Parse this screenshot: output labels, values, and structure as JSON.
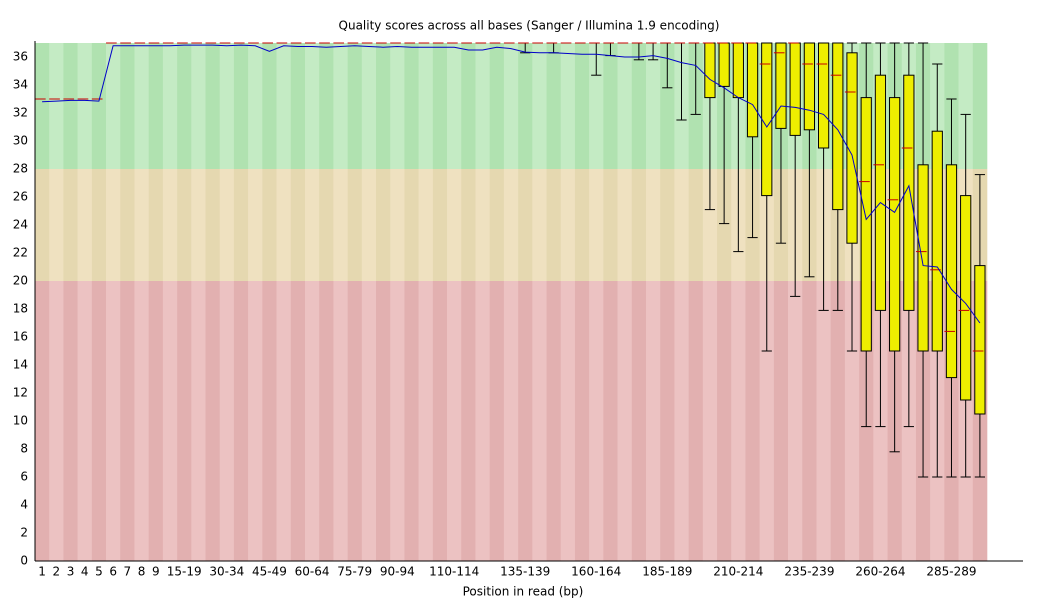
{
  "chart_data": {
    "type": "box",
    "title": "Quality scores across all bases (Sanger / Illumina 1.9 encoding)",
    "x_label": "Position in read (bp)",
    "categories": [
      "1",
      "2",
      "3",
      "4",
      "5",
      "6",
      "7",
      "8",
      "9",
      null,
      "15-19",
      null,
      null,
      "30-34",
      null,
      null,
      "45-49",
      null,
      null,
      "60-64",
      null,
      null,
      "75-79",
      null,
      null,
      "90-94",
      null,
      null,
      null,
      "110-114",
      null,
      null,
      null,
      null,
      "135-139",
      null,
      null,
      null,
      null,
      "160-164",
      null,
      null,
      null,
      null,
      "185-189",
      null,
      null,
      null,
      null,
      "210-214",
      null,
      null,
      null,
      null,
      "235-239",
      null,
      null,
      null,
      null,
      "260-264",
      null,
      null,
      null,
      null,
      "285-289",
      null,
      null
    ],
    "lower": [
      33,
      33,
      33,
      33,
      33,
      37,
      37,
      37,
      37,
      37,
      37,
      37,
      37,
      37,
      37,
      37,
      37,
      37,
      37,
      37,
      37,
      37,
      37,
      37,
      37,
      37,
      37,
      37,
      37,
      37,
      37,
      37,
      37,
      37,
      36.3,
      37,
      36.3,
      37,
      37,
      34.7,
      36.1,
      37,
      35.8,
      35.8,
      33.8,
      31.5,
      31.9,
      25.1,
      24.1,
      22.1,
      23.1,
      15,
      22.7,
      18.9,
      20.3,
      17.9,
      17.9,
      15,
      9.6,
      9.6,
      7.8,
      9.6,
      6,
      6,
      6,
      6,
      6
    ],
    "q1": [
      33,
      33,
      33,
      33,
      33,
      37,
      37,
      37,
      37,
      37,
      37,
      37,
      37,
      37,
      37,
      37,
      37,
      37,
      37,
      37,
      37,
      37,
      37,
      37,
      37,
      37,
      37,
      37,
      37,
      37,
      37,
      37,
      37,
      37,
      37,
      37,
      37,
      37,
      37,
      37,
      37,
      37,
      37,
      37,
      37,
      37,
      37,
      33.1,
      33.9,
      33.1,
      30.3,
      26.1,
      30.9,
      30.4,
      30.8,
      29.5,
      25.1,
      22.7,
      15,
      17.9,
      15,
      17.9,
      15,
      15,
      13.1,
      11.5,
      10.5
    ],
    "median": [
      33,
      33,
      33,
      33,
      33,
      37,
      37,
      37,
      37,
      37,
      37,
      37,
      37,
      37,
      37,
      37,
      37,
      37,
      37,
      37,
      37,
      37,
      37,
      37,
      37,
      37,
      37,
      37,
      37,
      37,
      37,
      37,
      37,
      37,
      37,
      37,
      37,
      37,
      37,
      37,
      37,
      37,
      37,
      37,
      37,
      37,
      37,
      37,
      37,
      37,
      37,
      35.5,
      36.3,
      37,
      35.5,
      35.5,
      34.7,
      33.5,
      27.1,
      28.3,
      25.8,
      29.5,
      22.1,
      20.8,
      16.4,
      17.9,
      15
    ],
    "q3": [
      33,
      33,
      33,
      33,
      33,
      37,
      37,
      37,
      37,
      37,
      37,
      37,
      37,
      37,
      37,
      37,
      37,
      37,
      37,
      37,
      37,
      37,
      37,
      37,
      37,
      37,
      37,
      37,
      37,
      37,
      37,
      37,
      37,
      37,
      37,
      37,
      37,
      37,
      37,
      37,
      37,
      37,
      37,
      37,
      37,
      37,
      37,
      37,
      37,
      37,
      37,
      37,
      37,
      37,
      37,
      37,
      37,
      36.3,
      33.1,
      34.7,
      33.1,
      34.7,
      28.3,
      30.7,
      28.3,
      26.1,
      21.1
    ],
    "upper": [
      33,
      33,
      33,
      33,
      33,
      37,
      37,
      37,
      37,
      37,
      37,
      37,
      37,
      37,
      37,
      37,
      37,
      37,
      37,
      37,
      37,
      37,
      37,
      37,
      37,
      37,
      37,
      37,
      37,
      37,
      37,
      37,
      37,
      37,
      37,
      37,
      37,
      37,
      37,
      37,
      37,
      37,
      37,
      37,
      37,
      37,
      37,
      37,
      37,
      37,
      37,
      37,
      37,
      37,
      37,
      37,
      37,
      37,
      37,
      37,
      37,
      37,
      37,
      35.5,
      33,
      31.9,
      27.6
    ],
    "mean": [
      32.8,
      32.85,
      32.9,
      32.9,
      32.85,
      36.8,
      36.8,
      36.8,
      36.8,
      36.8,
      36.85,
      36.85,
      36.85,
      36.8,
      36.85,
      36.8,
      36.4,
      36.8,
      36.75,
      36.75,
      36.7,
      36.75,
      36.8,
      36.75,
      36.7,
      36.75,
      36.7,
      36.7,
      36.7,
      36.7,
      36.5,
      36.5,
      36.7,
      36.6,
      36.35,
      36.3,
      36.3,
      36.25,
      36.2,
      36.2,
      36.1,
      36.0,
      36.0,
      36.1,
      35.9,
      35.6,
      35.4,
      34.4,
      33.8,
      33.1,
      32.6,
      31.0,
      32.5,
      32.4,
      32.2,
      31.9,
      30.8,
      29.0,
      24.4,
      25.6,
      24.9,
      26.8,
      21.1,
      21.0,
      19.4,
      18.4,
      17.0
    ],
    "box_color": "#eeee00",
    "median_color": "#c80000",
    "mean_color": "#0000c8",
    "zones": [
      {
        "from": 28,
        "to": 37,
        "colors": [
          "#b0e2b0",
          "#c4ebc4"
        ]
      },
      {
        "from": 20,
        "to": 28,
        "colors": [
          "#e5d8b0",
          "#efe1c0"
        ]
      },
      {
        "from": 0,
        "to": 20,
        "colors": [
          "#e2b0b0",
          "#ecc2c2"
        ]
      }
    ],
    "ylim": [
      0,
      37
    ],
    "yticks": [
      0,
      2,
      4,
      6,
      8,
      10,
      12,
      14,
      16,
      18,
      20,
      22,
      24,
      26,
      28,
      30,
      32,
      34,
      36
    ]
  }
}
